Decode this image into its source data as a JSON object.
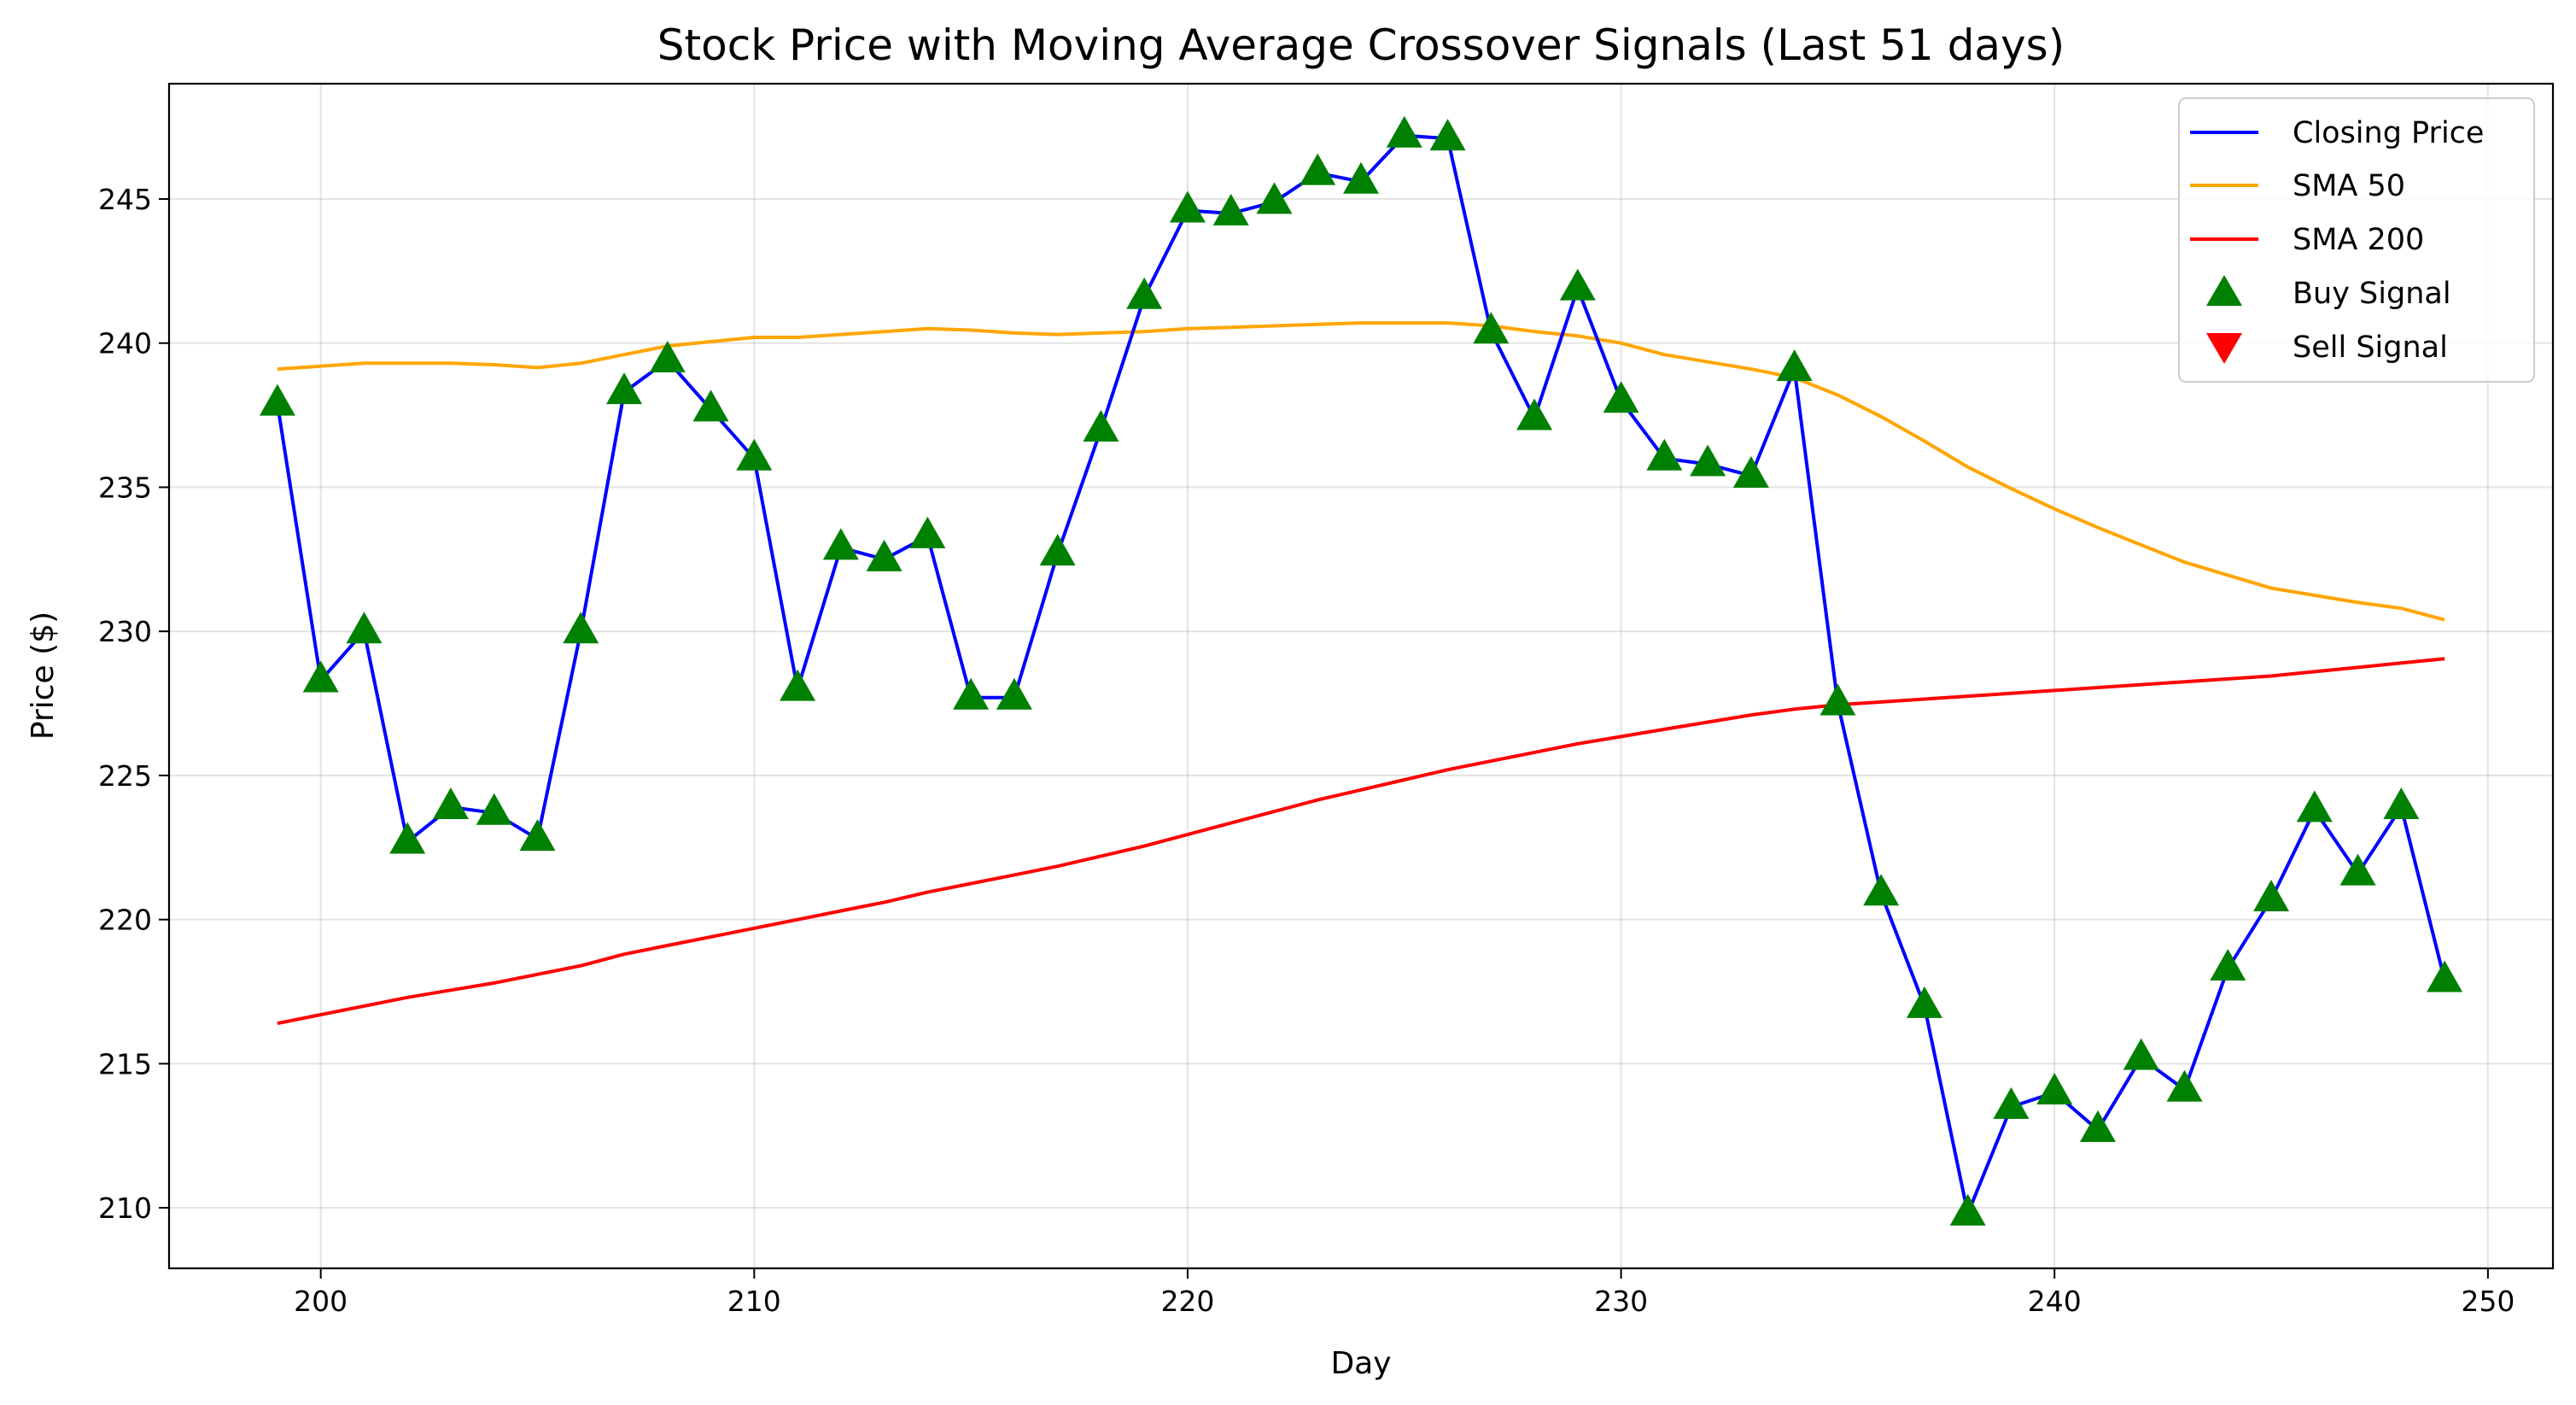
{
  "chart_data": {
    "type": "line",
    "title": "Stock Price with Moving Average Crossover Signals (Last 51 days)",
    "xlabel": "Day",
    "ylabel": "Price ($)",
    "xlim": [
      196.5,
      251.5
    ],
    "ylim": [
      207.9,
      249.0
    ],
    "xticks": [
      200,
      210,
      220,
      230,
      240,
      250
    ],
    "yticks": [
      210,
      215,
      220,
      225,
      230,
      235,
      240,
      245
    ],
    "grid": true,
    "legend_position": "top-right",
    "x": [
      199,
      200,
      201,
      202,
      203,
      204,
      205,
      206,
      207,
      208,
      209,
      210,
      211,
      212,
      213,
      214,
      215,
      216,
      217,
      218,
      219,
      220,
      221,
      222,
      223,
      224,
      225,
      226,
      227,
      228,
      229,
      230,
      231,
      232,
      233,
      234,
      235,
      236,
      237,
      238,
      239,
      240,
      241,
      242,
      243,
      244,
      245,
      246,
      247,
      248,
      249
    ],
    "series": [
      {
        "name": "Closing Price",
        "color": "#0000ff",
        "values": [
          237.9,
          228.3,
          230.0,
          222.7,
          223.9,
          223.7,
          222.8,
          230.0,
          238.3,
          239.4,
          237.7,
          236.0,
          228.0,
          232.9,
          232.5,
          233.3,
          227.7,
          227.7,
          232.7,
          237.0,
          241.6,
          244.6,
          244.5,
          244.9,
          245.9,
          245.6,
          247.2,
          247.1,
          240.4,
          237.4,
          241.9,
          238.0,
          236.0,
          235.8,
          235.4,
          239.1,
          227.5,
          220.9,
          217.0,
          209.8,
          213.5,
          214.0,
          212.7,
          215.2,
          214.1,
          218.3,
          220.7,
          223.8,
          221.6,
          223.9,
          217.9
        ]
      },
      {
        "name": "SMA 50",
        "color": "#ffa500",
        "values": [
          239.1,
          239.2,
          239.3,
          239.3,
          239.3,
          239.25,
          239.15,
          239.3,
          239.6,
          239.9,
          240.05,
          240.2,
          240.2,
          240.3,
          240.4,
          240.5,
          240.45,
          240.35,
          240.3,
          240.35,
          240.4,
          240.5,
          240.55,
          240.6,
          240.65,
          240.7,
          240.7,
          240.7,
          240.6,
          240.4,
          240.25,
          240.0,
          239.6,
          239.35,
          239.1,
          238.8,
          238.2,
          237.45,
          236.6,
          235.7,
          234.95,
          234.25,
          233.6,
          233.0,
          232.4,
          231.95,
          231.5,
          231.25,
          231.0,
          230.8,
          230.4
        ]
      },
      {
        "name": "SMA 200",
        "color": "#ff0000",
        "values": [
          216.4,
          216.7,
          217.0,
          217.3,
          217.55,
          217.8,
          218.1,
          218.4,
          218.8,
          219.1,
          219.4,
          219.7,
          220.0,
          220.3,
          220.6,
          220.95,
          221.25,
          221.55,
          221.85,
          222.2,
          222.55,
          222.95,
          223.35,
          223.75,
          224.15,
          224.5,
          224.85,
          225.2,
          225.5,
          225.8,
          226.1,
          226.35,
          226.6,
          226.85,
          227.1,
          227.3,
          227.45,
          227.55,
          227.65,
          227.75,
          227.85,
          227.95,
          228.05,
          228.15,
          228.25,
          228.35,
          228.45,
          228.6,
          228.75,
          228.9,
          229.05
        ]
      }
    ],
    "buy_signals": {
      "name": "Buy Signal",
      "color": "#008000",
      "x": [
        199,
        200,
        201,
        202,
        203,
        204,
        205,
        206,
        207,
        208,
        209,
        210,
        211,
        212,
        213,
        214,
        215,
        216,
        217,
        218,
        219,
        220,
        221,
        222,
        223,
        224,
        225,
        226,
        227,
        228,
        229,
        230,
        231,
        232,
        233,
        234,
        235,
        236,
        237,
        238,
        239,
        240,
        241,
        242,
        243,
        244,
        245,
        246,
        247,
        248,
        249
      ],
      "y": [
        237.9,
        228.3,
        230.0,
        222.7,
        223.9,
        223.7,
        222.8,
        230.0,
        238.3,
        239.4,
        237.7,
        236.0,
        228.0,
        232.9,
        232.5,
        233.3,
        227.7,
        227.7,
        232.7,
        237.0,
        241.6,
        244.6,
        244.5,
        244.9,
        245.9,
        245.6,
        247.2,
        247.1,
        240.4,
        237.4,
        241.9,
        238.0,
        236.0,
        235.8,
        235.4,
        239.1,
        227.5,
        220.9,
        217.0,
        209.8,
        213.5,
        214.0,
        212.7,
        215.2,
        214.1,
        218.3,
        220.7,
        223.8,
        221.6,
        223.9,
        217.9
      ]
    },
    "sell_signals": {
      "name": "Sell Signal",
      "color": "#ff0000",
      "x": [],
      "y": []
    }
  }
}
